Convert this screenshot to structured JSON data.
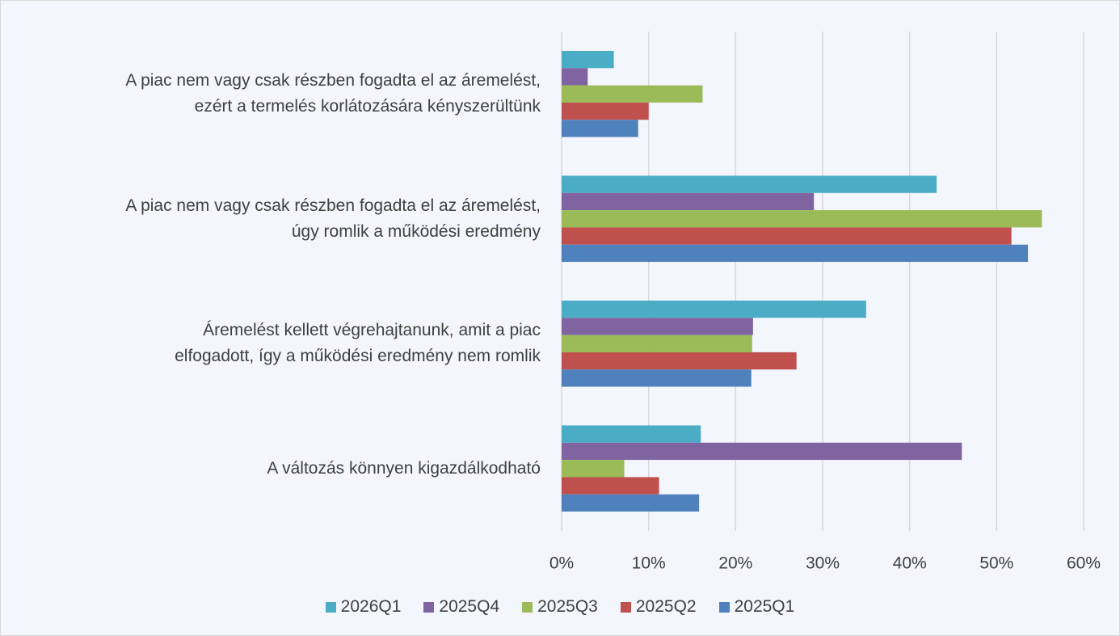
{
  "chart_data": {
    "type": "barh",
    "categories": [
      "A piac nem vagy csak részben fogadta el az áremelést,\nezért a termelés korlátozására kényszerültünk",
      "A piac nem vagy csak részben fogadta el az áremelést,\núgy romlik a működési eredmény",
      "Áremelést kellett végrehajtanunk, amit a piac\nelfogadott, így a működési eredmény nem romlik",
      "A változás könnyen kigazdálkodható"
    ],
    "series": [
      {
        "name": "2026Q1",
        "color": "#4bacc6",
        "values": [
          6,
          43.1,
          35,
          16
        ]
      },
      {
        "name": "2025Q4",
        "color": "#8064a2",
        "values": [
          3,
          29,
          22,
          46
        ]
      },
      {
        "name": "2025Q3",
        "color": "#9bbb59",
        "values": [
          16.2,
          55.2,
          21.9,
          7.2
        ]
      },
      {
        "name": "2025Q2",
        "color": "#c0504d",
        "values": [
          10,
          51.7,
          27,
          11.2
        ]
      },
      {
        "name": "2025Q1",
        "color": "#4f81bd",
        "values": [
          8.8,
          53.6,
          21.8,
          15.8
        ]
      }
    ],
    "xlim": [
      0,
      60
    ],
    "xticks": [
      {
        "value": 0,
        "label": "0%"
      },
      {
        "value": 10,
        "label": "10%"
      },
      {
        "value": 20,
        "label": "20%"
      },
      {
        "value": 30,
        "label": "30%"
      },
      {
        "value": 40,
        "label": "40%"
      },
      {
        "value": 50,
        "label": "50%"
      },
      {
        "value": 60,
        "label": "60%"
      }
    ],
    "grid": true
  }
}
